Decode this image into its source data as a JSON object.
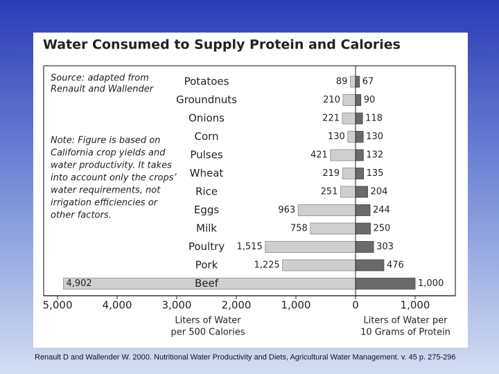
{
  "chart_data": {
    "type": "diverging-bar",
    "title": "Water Consumed to Supply Protein and Calories",
    "source_note": [
      "Source: adapted from",
      "Renault and Wallender"
    ],
    "note": [
      "Note: Figure is based on",
      "California crop yields and",
      "water productivity. It takes",
      "into account only the crops’",
      "water requirements, not",
      "irrigation efficiencies or",
      "other factors."
    ],
    "categories": [
      "Potatoes",
      "Groundnuts",
      "Onions",
      "Corn",
      "Pulses",
      "Wheat",
      "Rice",
      "Eggs",
      "Milk",
      "Poultry",
      "Pork",
      "Beef"
    ],
    "series": [
      {
        "name": [
          "Liters of Water",
          "per 500 Calories"
        ],
        "color": "#cfcfcf",
        "values": [
          89,
          210,
          221,
          130,
          421,
          219,
          251,
          963,
          758,
          1515,
          1225,
          4902
        ],
        "value_labels": [
          "89",
          "210",
          "221",
          "130",
          "421",
          "219",
          "251",
          "963",
          "758",
          "1,515",
          "1,225",
          "4,902"
        ]
      },
      {
        "name": [
          "Liters of Water per",
          "10 Grams of Protein"
        ],
        "color": "#6a6a6a",
        "axis": "x2",
        "values": [
          67,
          90,
          118,
          130,
          132,
          135,
          204,
          244,
          250,
          303,
          476,
          1000
        ],
        "value_labels": [
          "67",
          "90",
          "118",
          "130",
          "132",
          "135",
          "204",
          "244",
          "250",
          "303",
          "476",
          "1,000"
        ]
      }
    ],
    "xlim": [
      5233,
      0
    ],
    "xticks": [
      {
        "value": 5000,
        "label": "5,000"
      },
      {
        "value": 4000,
        "label": "4,000"
      },
      {
        "value": 3000,
        "label": "3,000"
      },
      {
        "value": 2000,
        "label": "2,000"
      },
      {
        "value": 1000,
        "label": "1,000"
      },
      0
    ],
    "x2lim": [
      0,
      1674
    ],
    "x2ticks": [
      {
        "value": 1000,
        "label": "1,000"
      }
    ]
  },
  "caption": "Renault D and Wallender W. 2000. Nutritional Water Productivity and Diets, Agricultural Water Management. v. 45 p. 275-296"
}
